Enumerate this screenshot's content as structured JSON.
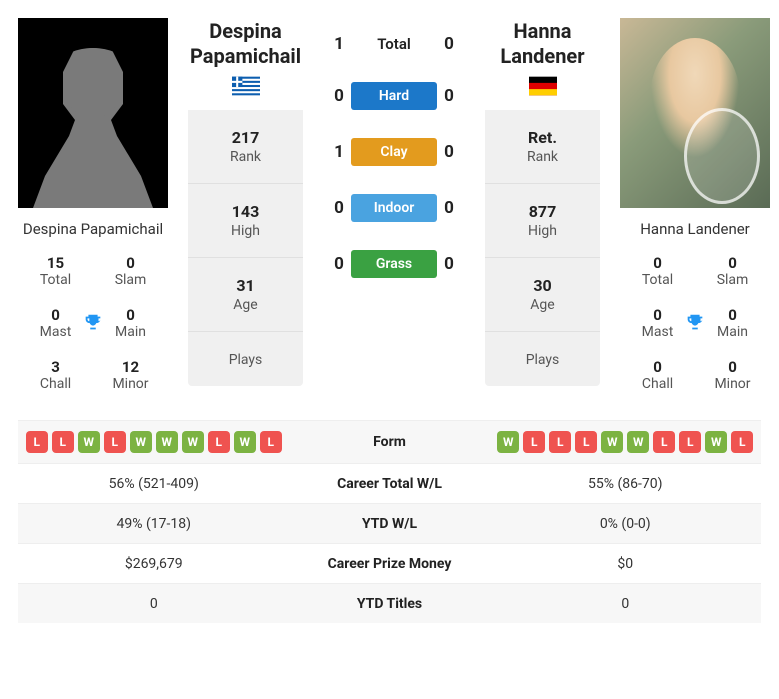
{
  "players": {
    "left": {
      "name": "Despina Papamichail",
      "bigName": "Despina Papamichail",
      "flag": {
        "country": "Greece",
        "stripes": [
          "#0d5eaf",
          "#ffffff"
        ],
        "canton": "#0d5eaf"
      },
      "rank": {
        "value": "217",
        "label": "Rank"
      },
      "high": {
        "value": "143",
        "label": "High"
      },
      "age": {
        "value": "31",
        "label": "Age"
      },
      "plays": {
        "value": "",
        "label": "Plays"
      },
      "titles": {
        "total": {
          "val": "15",
          "lbl": "Total"
        },
        "slam": {
          "val": "0",
          "lbl": "Slam"
        },
        "mast": {
          "val": "0",
          "lbl": "Mast"
        },
        "main": {
          "val": "0",
          "lbl": "Main"
        },
        "chall": {
          "val": "3",
          "lbl": "Chall"
        },
        "minor": {
          "val": "12",
          "lbl": "Minor"
        }
      }
    },
    "right": {
      "name": "Hanna Landener",
      "bigName": "Hanna Landener",
      "flag": {
        "country": "Germany",
        "stripes": [
          "#000000",
          "#dd0000",
          "#ffce00"
        ]
      },
      "rank": {
        "value": "Ret.",
        "label": "Rank"
      },
      "high": {
        "value": "877",
        "label": "High"
      },
      "age": {
        "value": "30",
        "label": "Age"
      },
      "plays": {
        "value": "",
        "label": "Plays"
      },
      "titles": {
        "total": {
          "val": "0",
          "lbl": "Total"
        },
        "slam": {
          "val": "0",
          "lbl": "Slam"
        },
        "mast": {
          "val": "0",
          "lbl": "Mast"
        },
        "main": {
          "val": "0",
          "lbl": "Main"
        },
        "chall": {
          "val": "0",
          "lbl": "Chall"
        },
        "minor": {
          "val": "0",
          "lbl": "Minor"
        }
      }
    }
  },
  "h2h": {
    "rows": [
      {
        "left": "1",
        "label": "Total",
        "right": "0",
        "pill": false,
        "color": ""
      },
      {
        "left": "0",
        "label": "Hard",
        "right": "0",
        "pill": true,
        "color": "#1c78c9"
      },
      {
        "left": "1",
        "label": "Clay",
        "right": "0",
        "pill": true,
        "color": "#e39b1e"
      },
      {
        "left": "0",
        "label": "Indoor",
        "right": "0",
        "pill": true,
        "color": "#4aa3e0"
      },
      {
        "left": "0",
        "label": "Grass",
        "right": "0",
        "pill": true,
        "color": "#3aa142"
      }
    ]
  },
  "table": {
    "rows": [
      {
        "leftForm": [
          "L",
          "L",
          "W",
          "L",
          "W",
          "W",
          "W",
          "L",
          "W",
          "L"
        ],
        "mid": "Form",
        "rightForm": [
          "W",
          "L",
          "L",
          "L",
          "W",
          "W",
          "L",
          "L",
          "W",
          "L"
        ]
      },
      {
        "left": "56% (521-409)",
        "mid": "Career Total W/L",
        "right": "55% (86-70)"
      },
      {
        "left": "49% (17-18)",
        "mid": "YTD W/L",
        "right": "0% (0-0)"
      },
      {
        "left": "$269,679",
        "mid": "Career Prize Money",
        "right": "$0"
      },
      {
        "left": "0",
        "mid": "YTD Titles",
        "right": "0"
      }
    ]
  },
  "colors": {
    "win": "#7cb342",
    "loss": "#ef5350",
    "trophy": "#2196f3"
  }
}
